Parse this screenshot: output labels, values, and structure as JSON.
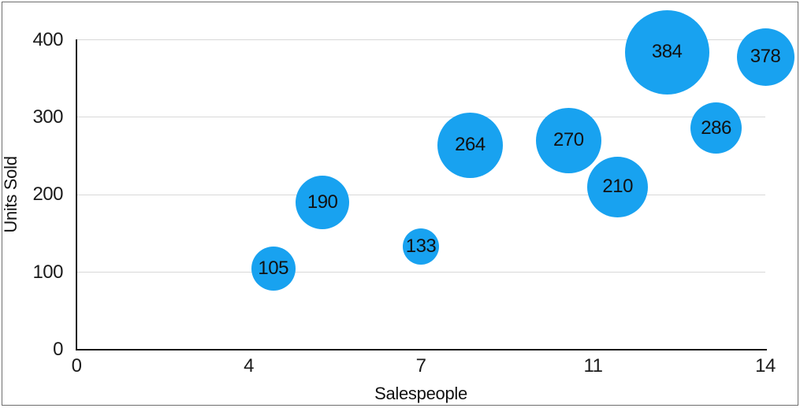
{
  "figure": {
    "background_color": "#ffffff",
    "border_color": "#6e6e6e"
  },
  "chart_data": {
    "type": "bubble",
    "title": "",
    "xlabel": "Salespeople",
    "ylabel": "Units Sold",
    "xlim": [
      0,
      14
    ],
    "ylim": [
      0,
      400
    ],
    "grid": "horizontal-only",
    "legend": "none",
    "bubble_color": "#18a2f0",
    "bubble_label_color": "#111111",
    "axis_color": "#1a1a1a",
    "gridline_color": "#d8d8d8",
    "x_ticks": [
      {
        "value": 0,
        "label": "0"
      },
      {
        "value": 3.5,
        "label": "4"
      },
      {
        "value": 7,
        "label": "7"
      },
      {
        "value": 10.5,
        "label": "11"
      },
      {
        "value": 14,
        "label": "14"
      }
    ],
    "y_ticks": [
      {
        "value": 0,
        "label": "0"
      },
      {
        "value": 100,
        "label": "100"
      },
      {
        "value": 200,
        "label": "200"
      },
      {
        "value": 300,
        "label": "300"
      },
      {
        "value": 400,
        "label": "400"
      }
    ],
    "points": [
      {
        "x": 4,
        "y": 105,
        "label": "105",
        "radius_px": 28
      },
      {
        "x": 5,
        "y": 190,
        "label": "190",
        "radius_px": 34
      },
      {
        "x": 7,
        "y": 133,
        "label": "133",
        "radius_px": 23
      },
      {
        "x": 8,
        "y": 264,
        "label": "264",
        "radius_px": 41.5
      },
      {
        "x": 10,
        "y": 270,
        "label": "270",
        "radius_px": 41.5
      },
      {
        "x": 11,
        "y": 210,
        "label": "210",
        "radius_px": 38.5
      },
      {
        "x": 12,
        "y": 384,
        "label": "384",
        "radius_px": 53.5
      },
      {
        "x": 13,
        "y": 286,
        "label": "286",
        "radius_px": 32.5
      },
      {
        "x": 14,
        "y": 378,
        "label": "378",
        "radius_px": 36.5
      }
    ]
  }
}
